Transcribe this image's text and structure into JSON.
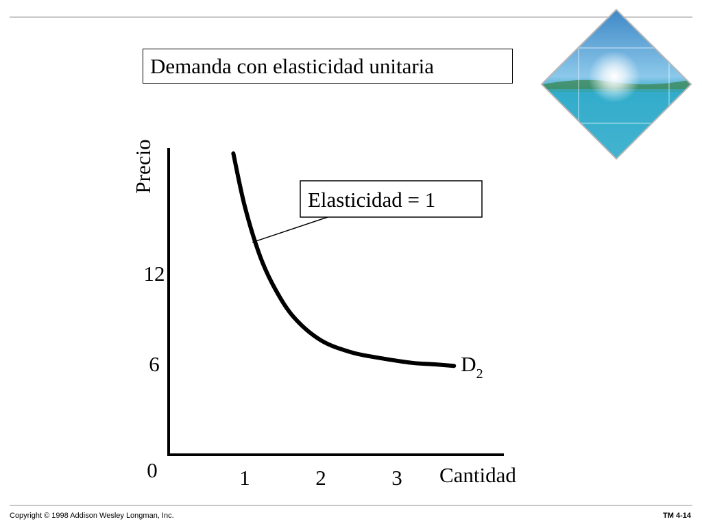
{
  "slide": {
    "title": "Demanda con elasticidad unitaria",
    "copyright": "Copyright © 1998 Addison Wesley Longman, Inc.",
    "slide_number": "TM 4-14",
    "emblem_icon": "island-photo-diamond-icon"
  },
  "chart_data": {
    "type": "line",
    "ylabel": "Precio",
    "xlabel": "Cantidad",
    "origin_label": "0",
    "x_ticks": [
      1,
      2,
      3
    ],
    "y_ticks": [
      6,
      12
    ],
    "xlim": [
      0,
      4.2
    ],
    "ylim": [
      0,
      20
    ],
    "series": [
      {
        "name": "D2",
        "label_main": "D",
        "label_sub": "2",
        "color": "#000000",
        "x": [
          0.85,
          1.0,
          1.2,
          1.4,
          1.65,
          2.0,
          2.4,
          2.8,
          3.2,
          3.5,
          3.75
        ],
        "y": [
          20.0,
          16.5,
          13.2,
          11.0,
          9.1,
          7.6,
          6.8,
          6.4,
          6.1,
          6.0,
          5.9
        ]
      }
    ],
    "annotation": {
      "text": "Elasticidad = 1",
      "pointer_x": 1.1,
      "pointer_y": 14.1
    }
  }
}
